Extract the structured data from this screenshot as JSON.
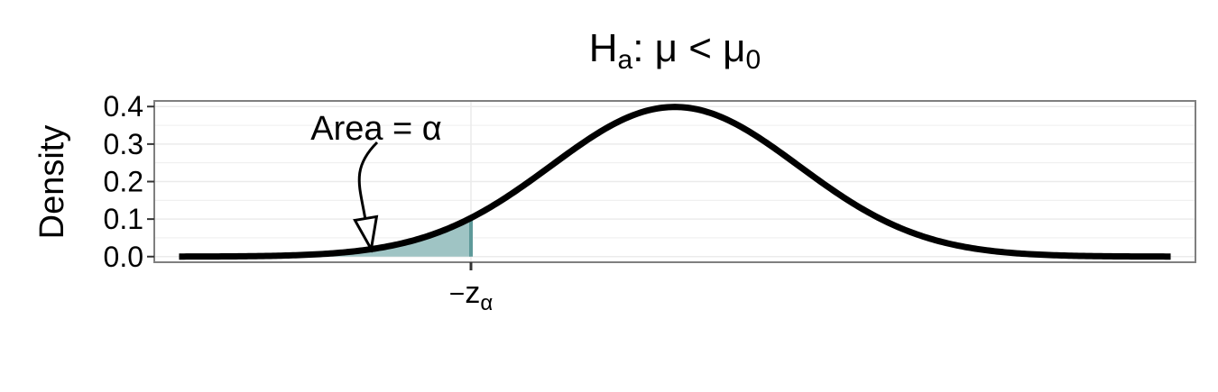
{
  "chart_data": {
    "type": "area",
    "title": {
      "main": "H",
      "sub_a": "a",
      "mid": ": μ < μ",
      "sub_0": "0"
    },
    "ylabel": "Density",
    "xlim": [
      -4.2,
      4.2
    ],
    "ylim": [
      -0.015,
      0.415
    ],
    "yticks": [
      0.0,
      0.1,
      0.2,
      0.3,
      0.4
    ],
    "ytick_labels": [
      "0.0",
      "0.1",
      "0.2",
      "0.3",
      "0.4"
    ],
    "x_range": [
      -4.0,
      4.0
    ],
    "critical_value": -1.645,
    "xtick_label": {
      "minus": "−",
      "var": "z",
      "sub": "α"
    },
    "annotation": "Area = α",
    "arrow_tip": {
      "x": -2.45,
      "y": 0.02
    },
    "grid": true,
    "curve": "standard normal density",
    "colors": {
      "curve": "#000000",
      "shade": "#9fc4c4",
      "critical_line": "#5e9a9a",
      "border": "#7f7f7f",
      "grid": "#ebebeb"
    }
  }
}
